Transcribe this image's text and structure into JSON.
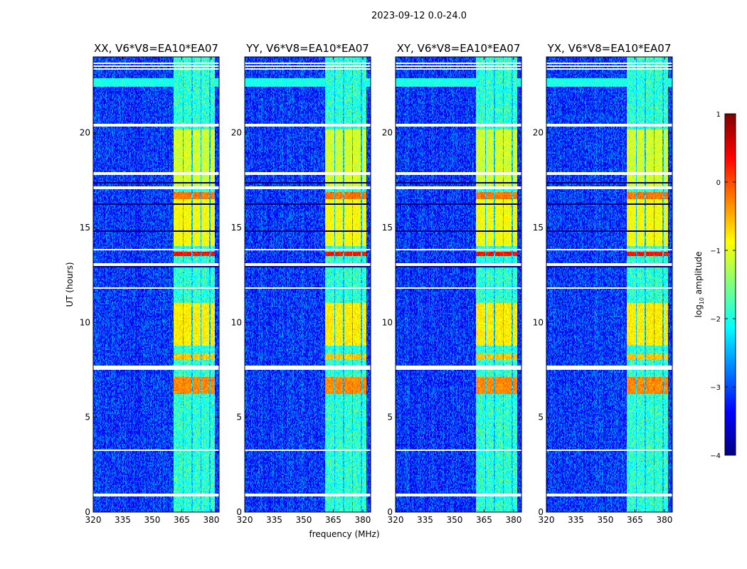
{
  "chart_data": {
    "type": "heatmap",
    "title": "2023-09-12 0.0-24.0",
    "xlabel": "frequency (MHz)",
    "ylabel": "UT (hours)",
    "xlim": [
      320,
      384
    ],
    "ylim": [
      0,
      24
    ],
    "xticks": [
      320,
      335,
      350,
      365,
      380
    ],
    "yticks": [
      0,
      5,
      10,
      15,
      20
    ],
    "panels": [
      {
        "title": "XX, V6*V8=EA10*EA07"
      },
      {
        "title": "YY, V6*V8=EA10*EA07"
      },
      {
        "title": "XY, V6*V8=EA10*EA07"
      },
      {
        "title": "YX, V6*V8=EA10*EA07"
      }
    ],
    "rfi_band_mhz": [
      361,
      382
    ],
    "rfi_subbands_mhz": [
      [
        361,
        365.5
      ],
      [
        366,
        370
      ],
      [
        370.5,
        374.5
      ],
      [
        375,
        379
      ],
      [
        379.5,
        382
      ]
    ],
    "flagged_hours": [
      [
        23.3,
        23.4
      ],
      [
        23.45,
        23.55
      ],
      [
        23.6,
        23.7
      ],
      [
        20.3,
        20.5
      ],
      [
        17.8,
        17.95
      ],
      [
        17.0,
        17.15
      ],
      [
        16.1,
        16.15
      ],
      [
        13.8,
        13.9
      ],
      [
        13.0,
        13.1
      ],
      [
        11.8,
        11.85
      ],
      [
        7.5,
        7.7
      ],
      [
        5.3,
        5.35
      ],
      [
        3.5,
        3.55
      ],
      [
        3.2,
        3.3
      ],
      [
        0.8,
        0.95
      ]
    ],
    "dark_hours": [
      [
        21.5,
        21.55
      ],
      [
        17.3,
        17.4
      ],
      [
        16.2,
        16.25
      ],
      [
        14.8,
        14.85
      ],
      [
        12.9,
        12.95
      ],
      [
        9.8,
        9.85
      ],
      [
        9.2,
        9.25
      ],
      [
        8.0,
        8.05
      ],
      [
        0.2,
        0.25
      ]
    ],
    "bright_periods_hours": [
      [
        6.2,
        7.1,
        -0.3
      ],
      [
        8.0,
        8.3,
        -0.6
      ],
      [
        8.8,
        11.0,
        -0.8
      ],
      [
        13.5,
        13.75,
        0.3
      ],
      [
        14.0,
        16.9,
        -0.9
      ],
      [
        16.5,
        16.9,
        -0.2
      ],
      [
        17.2,
        20.2,
        -1.1
      ]
    ],
    "colorbar": {
      "label_prefix": "log",
      "label_sub": "10",
      "label_suffix": " amplitude",
      "range": [
        -4,
        1
      ],
      "ticks": [
        "1",
        "0",
        "−1",
        "−2",
        "−3",
        "−4"
      ],
      "tick_values": [
        1,
        0,
        -1,
        -2,
        -3,
        -4
      ],
      "colormap": "jet"
    }
  }
}
